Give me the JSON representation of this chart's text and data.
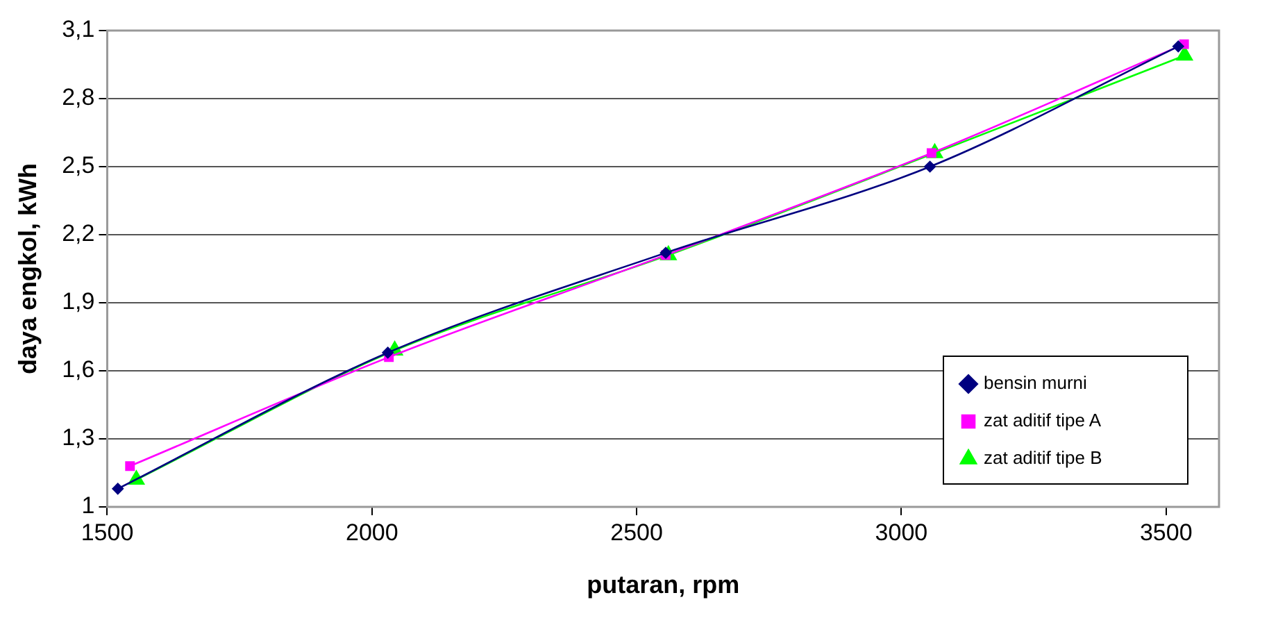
{
  "chart_data": {
    "type": "line",
    "xlabel": "putaran, rpm",
    "ylabel": "daya engkol, kWh",
    "xlim": [
      1500,
      3600
    ],
    "xticks": [
      1500,
      2000,
      2500,
      3000,
      3500
    ],
    "ylim": [
      1,
      3.1
    ],
    "yticks": [
      1,
      {
        "value": 1.3,
        "label": "1,3"
      },
      {
        "value": 1.6,
        "label": "1,6"
      },
      {
        "value": 1.9,
        "label": "1,9"
      },
      {
        "value": 2.2,
        "label": "2,2"
      },
      {
        "value": 2.5,
        "label": "2,5"
      },
      {
        "value": 2.8,
        "label": "2,8"
      },
      {
        "value": 3.1,
        "label": "3,1"
      }
    ],
    "grid": "y",
    "legend": "bottom right",
    "line_style": "solid",
    "series": [
      {
        "name": "bensin murni",
        "color": "#000080",
        "marker": "diamond",
        "x": [
          1520,
          2030,
          2555,
          3054,
          3523
        ],
        "values": [
          1.08,
          1.68,
          2.12,
          2.5,
          3.03
        ]
      },
      {
        "name": "zat aditif tipe A",
        "color": "#ff00ff",
        "marker": "square",
        "x": [
          1543,
          2032,
          2555,
          3057,
          3534
        ],
        "values": [
          1.18,
          1.66,
          2.11,
          2.56,
          3.04
        ]
      },
      {
        "name": "zat aditif tipe B",
        "color": "#00ff00",
        "marker": "triangle",
        "x": [
          1555,
          2043,
          2560,
          3063,
          3535
        ],
        "values": [
          1.12,
          1.69,
          2.11,
          2.56,
          2.99
        ]
      }
    ]
  }
}
